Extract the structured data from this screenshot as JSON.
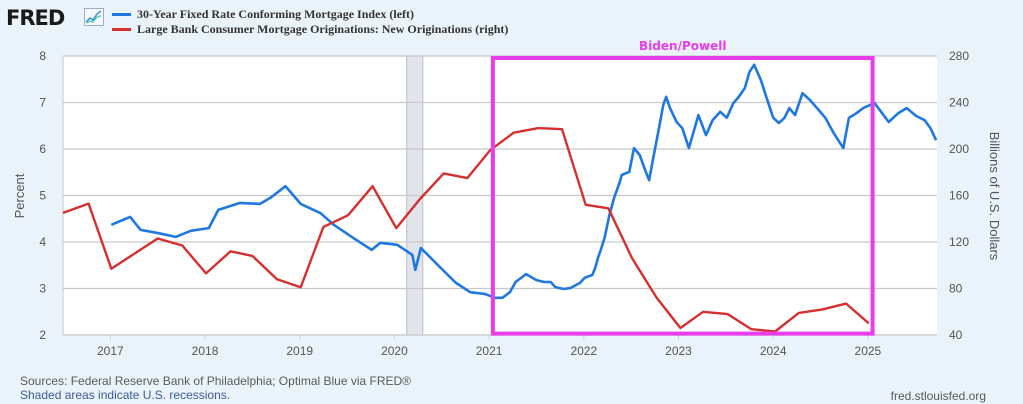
{
  "logo": {
    "text": "FRED",
    "icon": "line-chart-icon"
  },
  "legend": [
    {
      "label": "30-Year Fixed Rate Conforming Mortgage Index (left)",
      "color": "#1f77e0"
    },
    {
      "label": "Large Bank Consumer Mortgage Originations: New Originations (right)",
      "color": "#d62f2f"
    }
  ],
  "annotation": {
    "label": "Biden/Powell",
    "color": "#e83de8",
    "x_start": 2021.04,
    "x_end": 2025.05,
    "y_top_percent": 8.0,
    "y_bottom_percent": 2.03
  },
  "footer": {
    "sources": "Sources: Federal Reserve Bank of Philadelphia; Optimal Blue via FRED®",
    "recession_note": "Shaded areas indicate U.S. recessions.",
    "site": "fred.stlouisfed.org"
  },
  "chart_data": {
    "type": "line",
    "title": "",
    "xlabel": "",
    "ylabel": "Percent",
    "y2label": "Billions of U.S. Dollars",
    "xlim": [
      2016.5,
      2025.73
    ],
    "ylim": [
      2,
      8
    ],
    "y2lim": [
      40,
      280
    ],
    "grid": true,
    "legend_position": "top-left",
    "x_ticks": [
      2017,
      2018,
      2019,
      2020,
      2021,
      2022,
      2023,
      2024,
      2025
    ],
    "x_tick_labels": [
      "2017",
      "2018",
      "2019",
      "2020",
      "2021",
      "2022",
      "2023",
      "2024",
      "2025"
    ],
    "y_ticks": [
      2,
      3,
      4,
      5,
      6,
      7,
      8
    ],
    "y_tick_labels": [
      "2",
      "3",
      "4",
      "5",
      "6",
      "7",
      "8"
    ],
    "y2_ticks": [
      40,
      80,
      120,
      160,
      200,
      240,
      280
    ],
    "y2_tick_labels": [
      "40",
      "80",
      "120",
      "160",
      "200",
      "240",
      "280"
    ],
    "recessions": [
      [
        2020.13,
        2020.3
      ]
    ],
    "series": [
      {
        "name": "30-Year Fixed Rate Conforming Mortgage Index (left)",
        "axis": "left",
        "color": "#1f77e0",
        "x": [
          2017.01,
          2017.21,
          2017.32,
          2017.51,
          2017.69,
          2017.85,
          2018.04,
          2018.14,
          2018.37,
          2018.58,
          2018.69,
          2018.85,
          2019.01,
          2019.22,
          2019.36,
          2019.47,
          2019.6,
          2019.76,
          2019.85,
          2020.03,
          2020.19,
          2020.22,
          2020.28,
          2020.49,
          2020.65,
          2020.8,
          2020.96,
          2021.06,
          2021.14,
          2021.22,
          2021.28,
          2021.39,
          2021.5,
          2021.58,
          2021.65,
          2021.7,
          2021.79,
          2021.86,
          2021.96,
          2022.01,
          2022.09,
          2022.12,
          2022.15,
          2022.18,
          2022.22,
          2022.27,
          2022.32,
          2022.38,
          2022.4,
          2022.48,
          2022.53,
          2022.59,
          2022.64,
          2022.69,
          2022.72,
          2022.76,
          2022.8,
          2022.84,
          2022.87,
          2022.91,
          2022.98,
          2023.04,
          2023.11,
          2023.21,
          2023.29,
          2023.36,
          2023.44,
          2023.51,
          2023.58,
          2023.63,
          2023.7,
          2023.75,
          2023.8,
          2023.87,
          2023.93,
          2024.0,
          2024.06,
          2024.12,
          2024.17,
          2024.23,
          2024.31,
          2024.39,
          2024.48,
          2024.55,
          2024.64,
          2024.74,
          2024.8,
          2024.88,
          2024.95,
          2025.07,
          2025.14,
          2025.22,
          2025.32,
          2025.41,
          2025.51,
          2025.6,
          2025.66,
          2025.72
        ],
        "y": [
          4.37,
          4.54,
          4.26,
          4.19,
          4.11,
          4.24,
          4.3,
          4.69,
          4.84,
          4.82,
          4.95,
          5.2,
          4.82,
          4.62,
          4.37,
          4.22,
          4.04,
          3.83,
          3.98,
          3.94,
          3.72,
          3.4,
          3.87,
          3.44,
          3.12,
          2.92,
          2.88,
          2.8,
          2.8,
          2.92,
          3.14,
          3.31,
          3.18,
          3.14,
          3.14,
          3.03,
          2.99,
          3.01,
          3.12,
          3.23,
          3.29,
          3.44,
          3.66,
          3.83,
          4.09,
          4.58,
          4.95,
          5.29,
          5.44,
          5.51,
          6.02,
          5.87,
          5.59,
          5.33,
          5.66,
          6.09,
          6.52,
          6.95,
          7.12,
          6.88,
          6.58,
          6.45,
          6.02,
          6.73,
          6.3,
          6.62,
          6.8,
          6.67,
          6.99,
          7.1,
          7.31,
          7.66,
          7.81,
          7.48,
          7.1,
          6.67,
          6.56,
          6.67,
          6.88,
          6.73,
          7.2,
          7.05,
          6.84,
          6.67,
          6.34,
          6.02,
          6.67,
          6.77,
          6.88,
          6.99,
          6.8,
          6.58,
          6.77,
          6.88,
          6.71,
          6.62,
          6.45,
          6.19
        ]
      },
      {
        "name": "Large Bank Consumer Mortgage Originations: New Originations (right)",
        "axis": "right",
        "color": "#d62f2f",
        "x": [
          2016.5,
          2016.77,
          2017.01,
          2017.5,
          2017.76,
          2018.01,
          2018.27,
          2018.5,
          2018.76,
          2019.01,
          2019.25,
          2019.51,
          2019.77,
          2020.02,
          2020.27,
          2020.52,
          2020.77,
          2021.01,
          2021.26,
          2021.52,
          2021.77,
          2022.02,
          2022.26,
          2022.51,
          2022.77,
          2023.02,
          2023.26,
          2023.52,
          2023.77,
          2024.02,
          2024.27,
          2024.52,
          2024.77,
          2025.01
        ],
        "y": [
          145,
          153,
          97,
          123,
          117,
          93,
          112,
          108,
          88,
          81,
          133,
          143,
          168,
          132,
          157,
          179,
          175,
          199,
          214,
          218,
          217,
          152,
          149,
          106,
          72,
          46,
          60,
          58,
          45,
          43,
          59,
          62,
          67,
          50
        ]
      }
    ]
  }
}
